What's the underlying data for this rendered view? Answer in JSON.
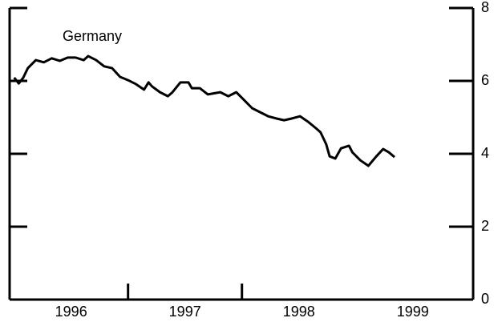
{
  "chart_data": {
    "type": "line",
    "title": "Germany",
    "x": [
      1996.0,
      1996.04,
      1996.08,
      1996.12,
      1996.19,
      1996.26,
      1996.33,
      1996.4,
      1996.47,
      1996.54,
      1996.61,
      1996.65,
      1996.72,
      1996.79,
      1996.86,
      1996.93,
      1997.0,
      1997.07,
      1997.14,
      1997.18,
      1997.21,
      1997.28,
      1997.35,
      1997.39,
      1997.46,
      1997.53,
      1997.56,
      1997.63,
      1997.7,
      1997.81,
      1997.88,
      1997.95,
      1998.02,
      1998.09,
      1998.16,
      1998.23,
      1998.3,
      1998.37,
      1998.44,
      1998.51,
      1998.58,
      1998.65,
      1998.69,
      1998.74,
      1998.77,
      1998.82,
      1998.87,
      1998.94,
      1998.97,
      1999.04,
      1999.11,
      1999.18,
      1999.24,
      1999.29,
      1999.34
    ],
    "series": [
      {
        "name": "Germany",
        "color": "#000000",
        "values": [
          6.09,
          5.93,
          6.09,
          6.35,
          6.57,
          6.51,
          6.62,
          6.55,
          6.64,
          6.64,
          6.57,
          6.68,
          6.57,
          6.4,
          6.35,
          6.11,
          6.02,
          5.91,
          5.76,
          5.96,
          5.85,
          5.69,
          5.58,
          5.69,
          5.96,
          5.96,
          5.8,
          5.8,
          5.63,
          5.69,
          5.58,
          5.69,
          5.47,
          5.25,
          5.14,
          5.03,
          4.97,
          4.92,
          4.97,
          5.03,
          4.88,
          4.7,
          4.59,
          4.26,
          3.93,
          3.87,
          4.15,
          4.22,
          4.04,
          3.82,
          3.67,
          3.93,
          4.13,
          4.04,
          3.91
        ]
      }
    ],
    "xlim": [
      1995.96,
      2000.03
    ],
    "xticks": [
      {
        "value": 1996.5,
        "label": "1996"
      },
      {
        "value": 1997.5,
        "label": "1997"
      },
      {
        "value": 1998.5,
        "label": "1998"
      },
      {
        "value": 1999.5,
        "label": "1999"
      }
    ],
    "xticks_minor": [
      1997,
      1998
    ],
    "ylim": [
      0,
      8
    ],
    "yticks": [
      0,
      2,
      4,
      6,
      8
    ],
    "grid": false
  }
}
